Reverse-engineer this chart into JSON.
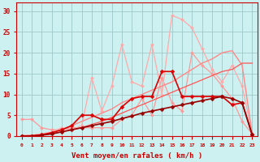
{
  "xlabel": "Vent moyen/en rafales ( km/h )",
  "bg_color": "#cdf0f0",
  "grid_color": "#a0c8c8",
  "xlim": [
    -0.5,
    23.5
  ],
  "ylim": [
    0,
    32
  ],
  "yticks": [
    0,
    5,
    10,
    15,
    20,
    25,
    30
  ],
  "xticks": [
    0,
    1,
    2,
    3,
    4,
    5,
    6,
    7,
    8,
    9,
    10,
    11,
    12,
    13,
    14,
    15,
    16,
    17,
    18,
    19,
    20,
    21,
    22,
    23
  ],
  "series": [
    {
      "color": "#ff9999",
      "linewidth": 0.9,
      "marker": "D",
      "markersize": 2.0,
      "y": [
        4,
        4,
        2,
        1.5,
        1.5,
        2,
        2,
        2,
        2,
        2,
        4,
        5,
        9,
        5,
        14,
        8,
        6,
        20,
        17,
        15,
        12,
        9,
        3.5,
        0.5
      ]
    },
    {
      "color": "#ffaaaa",
      "linewidth": 0.9,
      "marker": "D",
      "markersize": 2.0,
      "y": [
        0.2,
        0.2,
        0.5,
        1,
        2,
        1.5,
        2.5,
        14,
        6,
        12,
        22,
        13,
        12,
        22,
        10,
        29,
        28,
        26,
        21,
        16,
        13,
        17,
        12,
        0.5
      ]
    },
    {
      "color": "#ff8888",
      "linewidth": 1.0,
      "marker": null,
      "markersize": 0,
      "y": [
        0,
        0.2,
        0.4,
        0.8,
        1.5,
        2.5,
        3.5,
        4.5,
        5.5,
        6.5,
        8,
        9,
        10,
        11,
        12,
        13,
        14.5,
        16,
        17.5,
        18.5,
        20,
        20.5,
        17,
        0.5
      ]
    },
    {
      "color": "#ff5555",
      "linewidth": 0.9,
      "marker": null,
      "markersize": 0,
      "y": [
        0,
        0.1,
        0.3,
        0.6,
        1.0,
        1.5,
        2.0,
        2.8,
        3.5,
        4.5,
        5.5,
        6.5,
        7.5,
        8.5,
        9.5,
        10.5,
        11.5,
        12.5,
        13.5,
        14.5,
        15.5,
        16.0,
        17.5,
        17.5
      ]
    },
    {
      "color": "#dd0000",
      "linewidth": 1.2,
      "marker": "D",
      "markersize": 2.5,
      "y": [
        0,
        0,
        0.3,
        0.8,
        1.5,
        2.5,
        5,
        5,
        4,
        4,
        7,
        9,
        9.5,
        9.5,
        15.5,
        15.5,
        9.5,
        9.5,
        9.5,
        9.5,
        9.5,
        7.5,
        8,
        0.3
      ]
    },
    {
      "color": "#990000",
      "linewidth": 1.2,
      "marker": "D",
      "markersize": 2.5,
      "y": [
        0,
        0,
        0.2,
        0.5,
        1,
        1.5,
        2,
        2.5,
        3,
        3.5,
        4.2,
        4.8,
        5.5,
        6,
        6.5,
        7,
        7.5,
        8,
        8.5,
        9,
        9.5,
        9,
        8,
        0.3
      ]
    }
  ]
}
